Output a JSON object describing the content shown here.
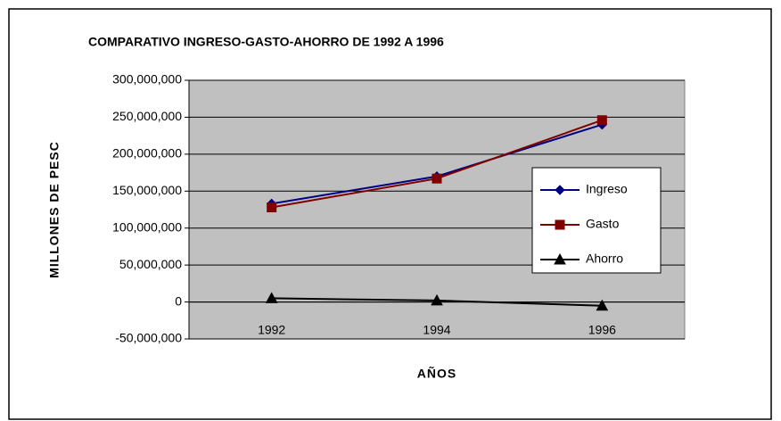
{
  "chart_data": {
    "type": "line",
    "title": "COMPARATIVO INGRESO-GASTO-AHORRO DE 1992 A 1996",
    "x_label": "AÑOS",
    "y_label": "MILLONES DE PESC",
    "categories": [
      "1992",
      "1994",
      "1996"
    ],
    "series": [
      {
        "name": "Ingreso",
        "color": "#000080",
        "marker": "diamond",
        "values": [
          133000000,
          170000000,
          240000000
        ]
      },
      {
        "name": "Gasto",
        "color": "#800000",
        "marker": "square",
        "values": [
          128000000,
          167000000,
          246000000
        ]
      },
      {
        "name": "Ahorro",
        "color": "#000000",
        "marker": "triangle",
        "values": [
          5000000,
          2000000,
          -5000000
        ]
      }
    ],
    "ylim": [
      -50000000,
      300000000
    ],
    "yticks": [
      {
        "value": -50000000,
        "label": "-50,000,000"
      },
      0,
      {
        "value": 50000000,
        "label": "50,000,000"
      },
      {
        "value": 100000000,
        "label": "100,000,000"
      },
      {
        "value": 150000000,
        "label": "150,000,000"
      },
      {
        "value": 200000000,
        "label": "200,000,000"
      },
      {
        "value": 250000000,
        "label": "250,000,000"
      },
      {
        "value": 300000000,
        "label": "300,000,000"
      }
    ],
    "grid": true,
    "plot_background": "#c0c0c0",
    "legend": "right"
  }
}
